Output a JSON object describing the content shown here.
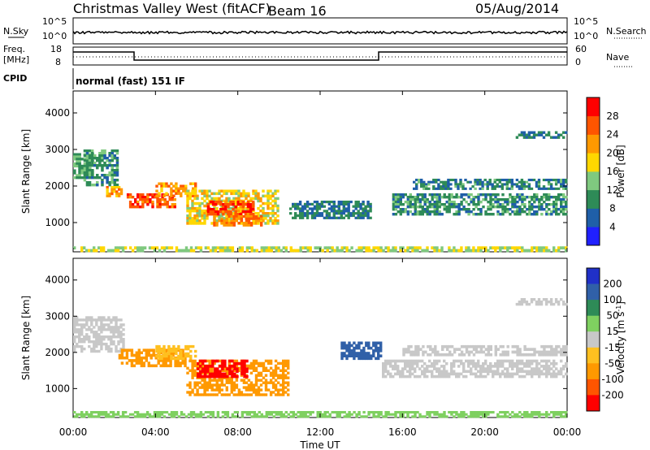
{
  "header": {
    "station": "Christmas Valley West (fitACF)",
    "beam": "Beam 16",
    "date": "05/Aug/2014"
  },
  "panels": {
    "nsky": {
      "left_label": "N.Sky",
      "left_ticks": [
        "10^5",
        "10^0"
      ],
      "right_ticks": [
        "10^5",
        "10^0"
      ],
      "right_label": "N.Search"
    },
    "freq": {
      "left_label_1": "Freq.",
      "left_label_2": "[MHz]",
      "left_ticks": [
        "18",
        "8"
      ],
      "right_ticks": [
        "60",
        "0"
      ],
      "right_label": "Nave"
    },
    "cpid": {
      "label": "CPID",
      "mode": "normal (fast) 151 IF"
    }
  },
  "chart_data": [
    {
      "type": "heatmap",
      "name": "power",
      "ylabel": "Slant Range [km]",
      "xlabel": "Time UT",
      "ylim": [
        200,
        4600
      ],
      "xlim": [
        0,
        24
      ],
      "y_ticks": [
        "1000",
        "2000",
        "3000",
        "4000"
      ],
      "x_ticks": [
        "00:00",
        "04:00",
        "08:00",
        "12:00",
        "16:00",
        "20:00",
        "00:00"
      ],
      "colorbar": {
        "label": "Power [dB]",
        "ticks": [
          "4",
          "8",
          "12",
          "16",
          "20",
          "24",
          "28"
        ],
        "colors": [
          "#2020ff",
          "#1f5fa8",
          "#2e8b57",
          "#7fc97f",
          "#ffd700",
          "#ff9900",
          "#ff5500",
          "#ff0000"
        ]
      },
      "blobs": [
        {
          "t0": 0.0,
          "t1": 1.0,
          "r0": 2200,
          "r1": 2900,
          "val": 12
        },
        {
          "t0": 0.5,
          "t1": 2.2,
          "r0": 2000,
          "r1": 3000,
          "val": 10
        },
        {
          "t0": 1.6,
          "t1": 2.4,
          "r0": 1700,
          "r1": 2000,
          "val": 22
        },
        {
          "t0": 2.6,
          "t1": 5.0,
          "r0": 1400,
          "r1": 1800,
          "val": 26
        },
        {
          "t0": 4.0,
          "t1": 6.0,
          "r0": 1700,
          "r1": 2100,
          "val": 22
        },
        {
          "t0": 5.5,
          "t1": 10.0,
          "r0": 950,
          "r1": 1900,
          "val": 18
        },
        {
          "t0": 6.5,
          "t1": 8.8,
          "r0": 1200,
          "r1": 1600,
          "val": 27
        },
        {
          "t0": 6.8,
          "t1": 9.2,
          "r0": 900,
          "r1": 1200,
          "val": 24
        },
        {
          "t0": 10.5,
          "t1": 14.5,
          "r0": 1100,
          "r1": 1600,
          "val": 8
        },
        {
          "t0": 15.5,
          "t1": 24.0,
          "r0": 1200,
          "r1": 1800,
          "val": 10
        },
        {
          "t0": 16.5,
          "t1": 24.0,
          "r0": 1900,
          "r1": 2200,
          "val": 9
        },
        {
          "t0": 21.5,
          "t1": 24.0,
          "r0": 3300,
          "r1": 3500,
          "val": 8
        },
        {
          "t0": 0.0,
          "t1": 24.0,
          "r0": 200,
          "r1": 350,
          "val": 16
        }
      ]
    },
    {
      "type": "heatmap",
      "name": "velocity",
      "ylabel": "Slant Range [km]",
      "xlabel": "Time UT",
      "ylim": [
        200,
        4600
      ],
      "xlim": [
        0,
        24
      ],
      "y_ticks": [
        "1000",
        "2000",
        "3000",
        "4000"
      ],
      "x_ticks": [
        "00:00",
        "04:00",
        "08:00",
        "12:00",
        "16:00",
        "20:00",
        "00:00"
      ],
      "colorbar": {
        "label": "Velocity [m s^-1]",
        "ticks": [
          "200",
          "100",
          "50",
          "15",
          "-15",
          "-50",
          "-100",
          "-200"
        ],
        "colors": [
          "#2030c8",
          "#3060a8",
          "#2e8b57",
          "#7fd060",
          "#c8c8c8",
          "#ffc020",
          "#ff9900",
          "#ff5500",
          "#ff0000"
        ]
      },
      "blobs": [
        {
          "t0": 0.0,
          "t1": 2.5,
          "r0": 2000,
          "r1": 3000,
          "val": 0
        },
        {
          "t0": 2.2,
          "t1": 5.5,
          "r0": 1600,
          "r1": 2100,
          "val": -60
        },
        {
          "t0": 4.0,
          "t1": 6.0,
          "r0": 1800,
          "r1": 2200,
          "val": -40
        },
        {
          "t0": 5.5,
          "t1": 10.5,
          "r0": 800,
          "r1": 1800,
          "val": -80
        },
        {
          "t0": 6.0,
          "t1": 8.5,
          "r0": 1300,
          "r1": 1800,
          "val": -210
        },
        {
          "t0": 13.0,
          "t1": 15.0,
          "r0": 1800,
          "r1": 2300,
          "val": 180
        },
        {
          "t0": 15.0,
          "t1": 24.0,
          "r0": 1300,
          "r1": 1800,
          "val": 0
        },
        {
          "t0": 16.0,
          "t1": 24.0,
          "r0": 1900,
          "r1": 2200,
          "val": 0
        },
        {
          "t0": 21.5,
          "t1": 24.0,
          "r0": 3300,
          "r1": 3500,
          "val": 0
        },
        {
          "t0": 0.0,
          "t1": 24.0,
          "r0": 200,
          "r1": 380,
          "val": 40
        }
      ]
    }
  ]
}
